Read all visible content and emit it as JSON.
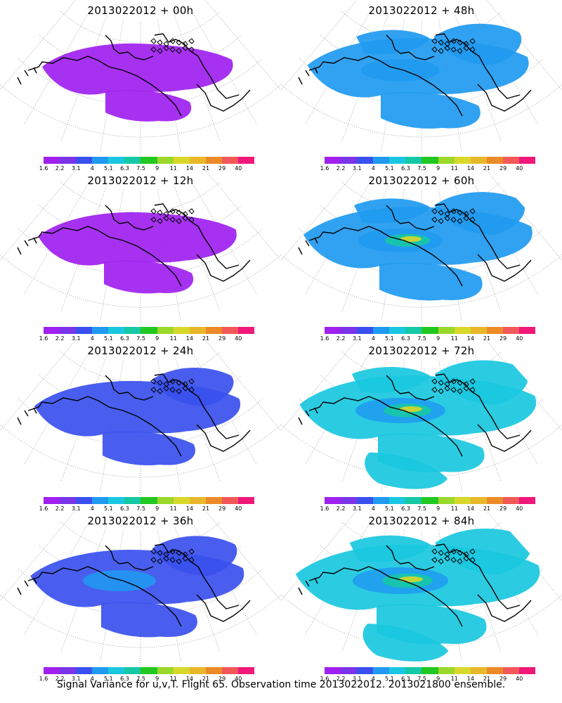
{
  "caption": "Signal Variance for u,v,T. Flight 65. Observation time 2013022012. 2013021800 ensemble.",
  "colorbar": {
    "labels": [
      "1.6",
      "2.2",
      "3.1",
      "4",
      "5.1",
      "6.3",
      "7.5",
      "9",
      "11",
      "14",
      "21",
      "29",
      "40"
    ],
    "colors": [
      "#a020f0",
      "#7a35e8",
      "#3a50ee",
      "#1f9af0",
      "#19c8e0",
      "#16c8a5",
      "#22c822",
      "#9ad82a",
      "#d8d82a",
      "#e8b82a",
      "#ec8a28",
      "#f25858",
      "#f01878"
    ]
  },
  "panels": [
    {
      "title": "2013022012 + 00h",
      "intensity": 0
    },
    {
      "title": "2013022012 + 48h",
      "intensity": 4
    },
    {
      "title": "2013022012 + 12h",
      "intensity": 1
    },
    {
      "title": "2013022012 + 60h",
      "intensity": 5
    },
    {
      "title": "2013022012 + 24h",
      "intensity": 2
    },
    {
      "title": "2013022012 + 72h",
      "intensity": 6
    },
    {
      "title": "2013022012 + 36h",
      "intensity": 3
    },
    {
      "title": "2013022012 + 84h",
      "intensity": 7
    }
  ]
}
